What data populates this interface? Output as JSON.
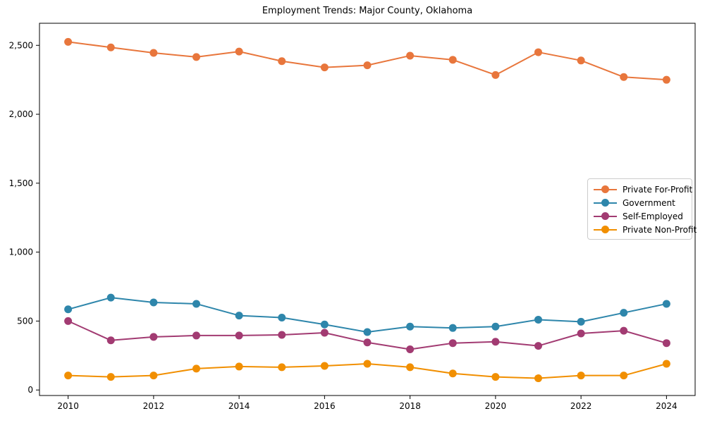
{
  "title": "Employment Trends: Major County, Oklahoma",
  "chart_data": {
    "type": "line",
    "title": "Employment Trends: Major County, Oklahoma",
    "xlabel": "",
    "ylabel": "",
    "x": [
      2010,
      2011,
      2012,
      2013,
      2014,
      2015,
      2016,
      2017,
      2018,
      2019,
      2020,
      2021,
      2022,
      2023,
      2024
    ],
    "series": [
      {
        "name": "Private For-Profit",
        "color": "#E8763C",
        "values": [
          2525,
          2485,
          2445,
          2415,
          2455,
          2385,
          2340,
          2355,
          2425,
          2395,
          2285,
          2450,
          2390,
          2270,
          2250
        ]
      },
      {
        "name": "Government",
        "color": "#2E86AB",
        "values": [
          585,
          670,
          635,
          625,
          540,
          525,
          475,
          420,
          460,
          450,
          460,
          510,
          495,
          560,
          625
        ]
      },
      {
        "name": "Self-Employed",
        "color": "#A23B72",
        "values": [
          500,
          360,
          385,
          395,
          395,
          400,
          415,
          345,
          295,
          340,
          350,
          320,
          410,
          430,
          340
        ]
      },
      {
        "name": "Private Non-Profit",
        "color": "#F18F01",
        "values": [
          105,
          95,
          105,
          155,
          170,
          165,
          175,
          190,
          165,
          120,
          95,
          85,
          105,
          105,
          190
        ]
      }
    ],
    "xticks": [
      2010,
      2012,
      2014,
      2016,
      2018,
      2020,
      2022,
      2024
    ],
    "xtick_labels": [
      "2010",
      "2012",
      "2014",
      "2016",
      "2018",
      "2020",
      "2022",
      "2024"
    ],
    "yticks": [
      0,
      500,
      1000,
      1500,
      2000,
      2500
    ],
    "ytick_labels": [
      "0",
      "500",
      "1,000",
      "1,500",
      "2,000",
      "2,500"
    ],
    "xlim": [
      2009.33,
      2024.67
    ],
    "ylim": [
      -40,
      2660
    ],
    "grid": false,
    "legend_position": "center right",
    "legend_labels": [
      "Private For-Profit",
      "Government",
      "Self-Employed",
      "Private Non-Profit"
    ]
  }
}
